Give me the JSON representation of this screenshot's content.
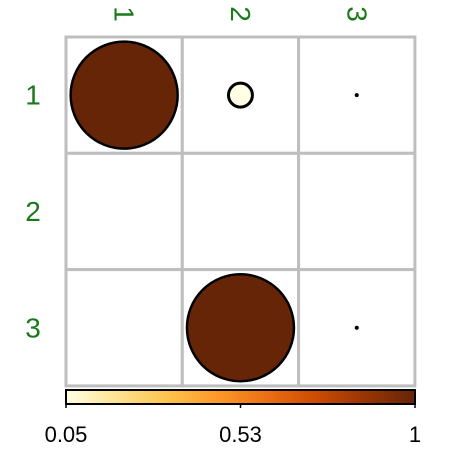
{
  "chart_data": {
    "type": "heatmap",
    "rows": [
      "1",
      "2",
      "3"
    ],
    "cols": [
      "1",
      "2",
      "3"
    ],
    "values": [
      [
        1.0,
        0.05,
        0.02
      ],
      [
        null,
        null,
        null
      ],
      [
        null,
        1.0,
        0.02
      ]
    ],
    "colorbar": {
      "min": 0.05,
      "max": 1,
      "tick_labels": [
        "0.05",
        "0.53",
        "1"
      ]
    },
    "grid": true,
    "label_color": "#1a7a1a",
    "palette": [
      "#ffffe5",
      "#fee391",
      "#fec44f",
      "#fe9929",
      "#ec7014",
      "#cc4c02",
      "#993404",
      "#662506"
    ]
  }
}
